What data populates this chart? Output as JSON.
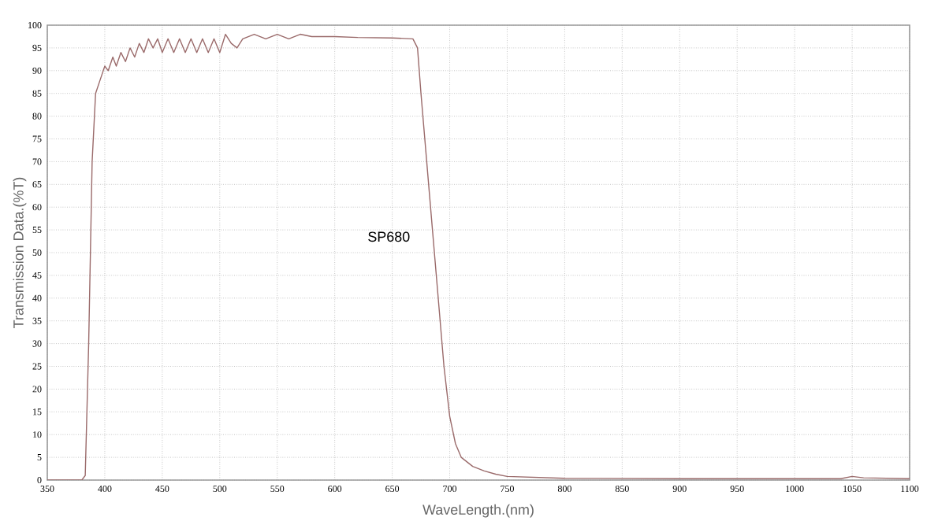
{
  "chart_data": {
    "type": "line",
    "xlabel": "WaveLength.(nm)",
    "ylabel": "Transmission Data.(%T)",
    "annotations": [
      "SP680"
    ],
    "series": [
      {
        "color": "#9a6a6a",
        "x": [
          350,
          380,
          383,
          386,
          389,
          392,
          396,
          400,
          403,
          407,
          410,
          414,
          418,
          422,
          426,
          430,
          434,
          438,
          442,
          446,
          450,
          455,
          460,
          465,
          470,
          475,
          480,
          485,
          490,
          495,
          500,
          505,
          510,
          515,
          520,
          530,
          540,
          550,
          560,
          570,
          580,
          600,
          620,
          650,
          668,
          672,
          675,
          680,
          685,
          690,
          695,
          700,
          705,
          710,
          720,
          730,
          740,
          750,
          800,
          900,
          1000,
          1040,
          1050,
          1060,
          1100
        ],
        "values": [
          0,
          0,
          1,
          30,
          70,
          85,
          88,
          91,
          90,
          93,
          91,
          94,
          92,
          95,
          93,
          96,
          94,
          97,
          95,
          97,
          94,
          97,
          94,
          97,
          94,
          97,
          94,
          97,
          94,
          97,
          94,
          98,
          96,
          95,
          97,
          98,
          97,
          98,
          97,
          98,
          97.5,
          97.5,
          97.3,
          97.2,
          97,
          95,
          85,
          70,
          55,
          40,
          25,
          14,
          8,
          5,
          3,
          2,
          1.3,
          0.8,
          0.4,
          0.3,
          0.3,
          0.3,
          0.8,
          0.5,
          0.3
        ]
      }
    ],
    "xlim": [
      350,
      1100
    ],
    "ylim": [
      0,
      100
    ],
    "xticks": [
      350,
      400,
      450,
      500,
      550,
      600,
      650,
      700,
      750,
      800,
      850,
      900,
      950,
      1000,
      1050,
      1100
    ],
    "yticks": [
      0,
      5,
      10,
      15,
      20,
      25,
      30,
      35,
      40,
      45,
      50,
      55,
      60,
      65,
      70,
      75,
      80,
      85,
      90,
      95,
      100
    ],
    "grid": true,
    "line_style": "solid"
  }
}
